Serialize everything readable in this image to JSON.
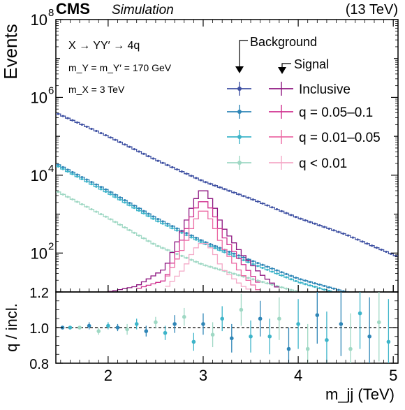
{
  "header": {
    "experiment": "CMS",
    "tag": "Simulation",
    "energy": "(13 TeV)"
  },
  "annotations": {
    "process": "X → YY′ → 4q",
    "mass_y": "m_Y = m_Y′ = 170 GeV",
    "mass_x": "m_X = 3 TeV"
  },
  "legend": {
    "background_label": "Background",
    "signal_label": "Signal",
    "entries": [
      "Inclusive",
      "q = 0.05–0.1",
      "q = 0.01–0.05",
      "q < 0.01"
    ]
  },
  "colors": {
    "bkg": [
      "#3f51a3",
      "#2f86b7",
      "#3db4c9",
      "#9fd8c4"
    ],
    "sig": [
      "#8e1680",
      "#d0318f",
      "#ec6aa4",
      "#f4a9c7"
    ]
  },
  "chart_data": [
    {
      "type": "line",
      "subtype": "step-histogram",
      "xlim": [
        1.45,
        5.05
      ],
      "ylim": [
        10,
        100000000
      ],
      "yscale": "log",
      "ylabel": "Events",
      "yticks": [
        100,
        10000,
        1000000,
        100000000
      ],
      "ytick_labels": [
        "10^2",
        "10^4",
        "10^6",
        "10^8"
      ],
      "xticks": [
        2,
        3,
        4,
        5
      ],
      "bkg_inclusive": {
        "x": [
          1.45,
          2.0,
          2.5,
          3.0,
          3.5,
          4.0,
          4.5,
          5.05
        ],
        "y": [
          400000,
          100000,
          25000,
          7000,
          2500,
          800,
          300,
          80
        ]
      },
      "bkg_q_0.05-0.1": {
        "x": [
          1.45,
          2.0,
          2.5,
          3.0,
          3.5,
          4.0,
          4.5,
          5.05
        ],
        "y": [
          20000,
          4000,
          800,
          200,
          65,
          22,
          10,
          7
        ]
      },
      "bkg_q_0.01-0.05": {
        "x": [
          1.45,
          2.0,
          2.5,
          3.0,
          3.5,
          4.0,
          4.5,
          5.05
        ],
        "y": [
          18000,
          3500,
          700,
          180,
          55,
          18,
          8,
          6
        ]
      },
      "bkg_q_lt_0.01": {
        "x": [
          1.45,
          2.0,
          2.5,
          3.0,
          3.5,
          4.0,
          4.5
        ],
        "y": [
          4000,
          800,
          160,
          50,
          22,
          10,
          6
        ]
      },
      "sig_inclusive": {
        "x": [
          2.0,
          2.3,
          2.6,
          2.8,
          2.9,
          3.0,
          3.1,
          3.2,
          3.4,
          3.6,
          3.8
        ],
        "y": [
          10,
          14,
          40,
          500,
          2000,
          5000,
          2000,
          500,
          100,
          30,
          12
        ]
      },
      "sig_q_0.05-0.1": {
        "x": [
          2.3,
          2.6,
          2.8,
          2.9,
          3.0,
          3.1,
          3.2,
          3.4,
          3.6
        ],
        "y": [
          12,
          20,
          300,
          1200,
          2500,
          1200,
          300,
          60,
          15
        ]
      },
      "sig_q_0.01-0.05": {
        "x": [
          2.6,
          2.8,
          2.9,
          3.0,
          3.1,
          3.2,
          3.4,
          3.6
        ],
        "y": [
          20,
          150,
          600,
          1500,
          600,
          150,
          30,
          10
        ]
      },
      "sig_q_lt_0.01": {
        "x": [
          2.6,
          2.8,
          2.9,
          3.0,
          3.1,
          3.2,
          3.4,
          3.6
        ],
        "y": [
          12,
          40,
          120,
          200,
          120,
          40,
          15,
          8
        ]
      }
    },
    {
      "type": "scatter",
      "xlim": [
        1.45,
        5.05
      ],
      "ylim": [
        0.8,
        1.2
      ],
      "xlabel": "m_jj (TeV)",
      "ylabel": "q / incl.",
      "yticks": [
        0.8,
        1.0,
        1.2
      ],
      "ytick_labels": [
        "0.8",
        "1.0",
        "1.2"
      ],
      "xticks": [
        2,
        3,
        4,
        5
      ],
      "xtick_labels": [
        "2",
        "3",
        "4",
        "5"
      ],
      "reference_line": 1.0,
      "points": [
        {
          "x": 1.52,
          "y": 1.0,
          "err": 0.01,
          "s": 0
        },
        {
          "x": 1.6,
          "y": 1.0,
          "err": 0.01,
          "s": 1
        },
        {
          "x": 1.7,
          "y": 1.0,
          "err": 0.01,
          "s": 2
        },
        {
          "x": 1.8,
          "y": 1.01,
          "err": 0.02,
          "s": 0
        },
        {
          "x": 1.9,
          "y": 0.98,
          "err": 0.02,
          "s": 2
        },
        {
          "x": 2.0,
          "y": 1.01,
          "err": 0.02,
          "s": 1
        },
        {
          "x": 2.1,
          "y": 1.0,
          "err": 0.02,
          "s": 0
        },
        {
          "x": 2.2,
          "y": 0.99,
          "err": 0.03,
          "s": 2
        },
        {
          "x": 2.3,
          "y": 1.02,
          "err": 0.03,
          "s": 1
        },
        {
          "x": 2.4,
          "y": 0.98,
          "err": 0.03,
          "s": 0
        },
        {
          "x": 2.5,
          "y": 1.03,
          "err": 0.03,
          "s": 2
        },
        {
          "x": 2.6,
          "y": 0.97,
          "err": 0.04,
          "s": 1
        },
        {
          "x": 2.7,
          "y": 1.02,
          "err": 0.05,
          "s": 0
        },
        {
          "x": 2.8,
          "y": 1.06,
          "err": 0.05,
          "s": 2
        },
        {
          "x": 2.9,
          "y": 0.92,
          "err": 0.05,
          "s": 1
        },
        {
          "x": 3.0,
          "y": 1.02,
          "err": 0.06,
          "s": 0
        },
        {
          "x": 3.1,
          "y": 0.96,
          "err": 0.07,
          "s": 2
        },
        {
          "x": 3.2,
          "y": 1.05,
          "err": 0.07,
          "s": 1
        },
        {
          "x": 3.3,
          "y": 0.94,
          "err": 0.08,
          "s": 0
        },
        {
          "x": 3.4,
          "y": 1.1,
          "err": 0.09,
          "s": 2
        },
        {
          "x": 3.5,
          "y": 0.95,
          "err": 0.09,
          "s": 1
        },
        {
          "x": 3.6,
          "y": 1.05,
          "err": 0.1,
          "s": 0
        },
        {
          "x": 3.7,
          "y": 0.95,
          "err": 0.1,
          "s": 1
        },
        {
          "x": 3.8,
          "y": 1.05,
          "err": 0.12,
          "s": 2
        },
        {
          "x": 3.9,
          "y": 0.88,
          "err": 0.12,
          "s": 0
        },
        {
          "x": 4.0,
          "y": 1.02,
          "err": 0.14,
          "s": 1
        },
        {
          "x": 4.1,
          "y": 0.88,
          "err": 0.14,
          "s": 2
        },
        {
          "x": 4.2,
          "y": 1.07,
          "err": 0.16,
          "s": 0
        },
        {
          "x": 4.3,
          "y": 0.93,
          "err": 0.16,
          "s": 1
        },
        {
          "x": 4.45,
          "y": 1.02,
          "err": 0.18,
          "s": 0
        },
        {
          "x": 4.55,
          "y": 0.88,
          "err": 0.2,
          "s": 2
        },
        {
          "x": 4.65,
          "y": 1.08,
          "err": 0.2,
          "s": 1
        },
        {
          "x": 4.75,
          "y": 0.95,
          "err": 0.22,
          "s": 0
        },
        {
          "x": 4.85,
          "y": 1.03,
          "err": 0.22,
          "s": 2
        },
        {
          "x": 4.95,
          "y": 0.92,
          "err": 0.24,
          "s": 1
        }
      ]
    }
  ]
}
